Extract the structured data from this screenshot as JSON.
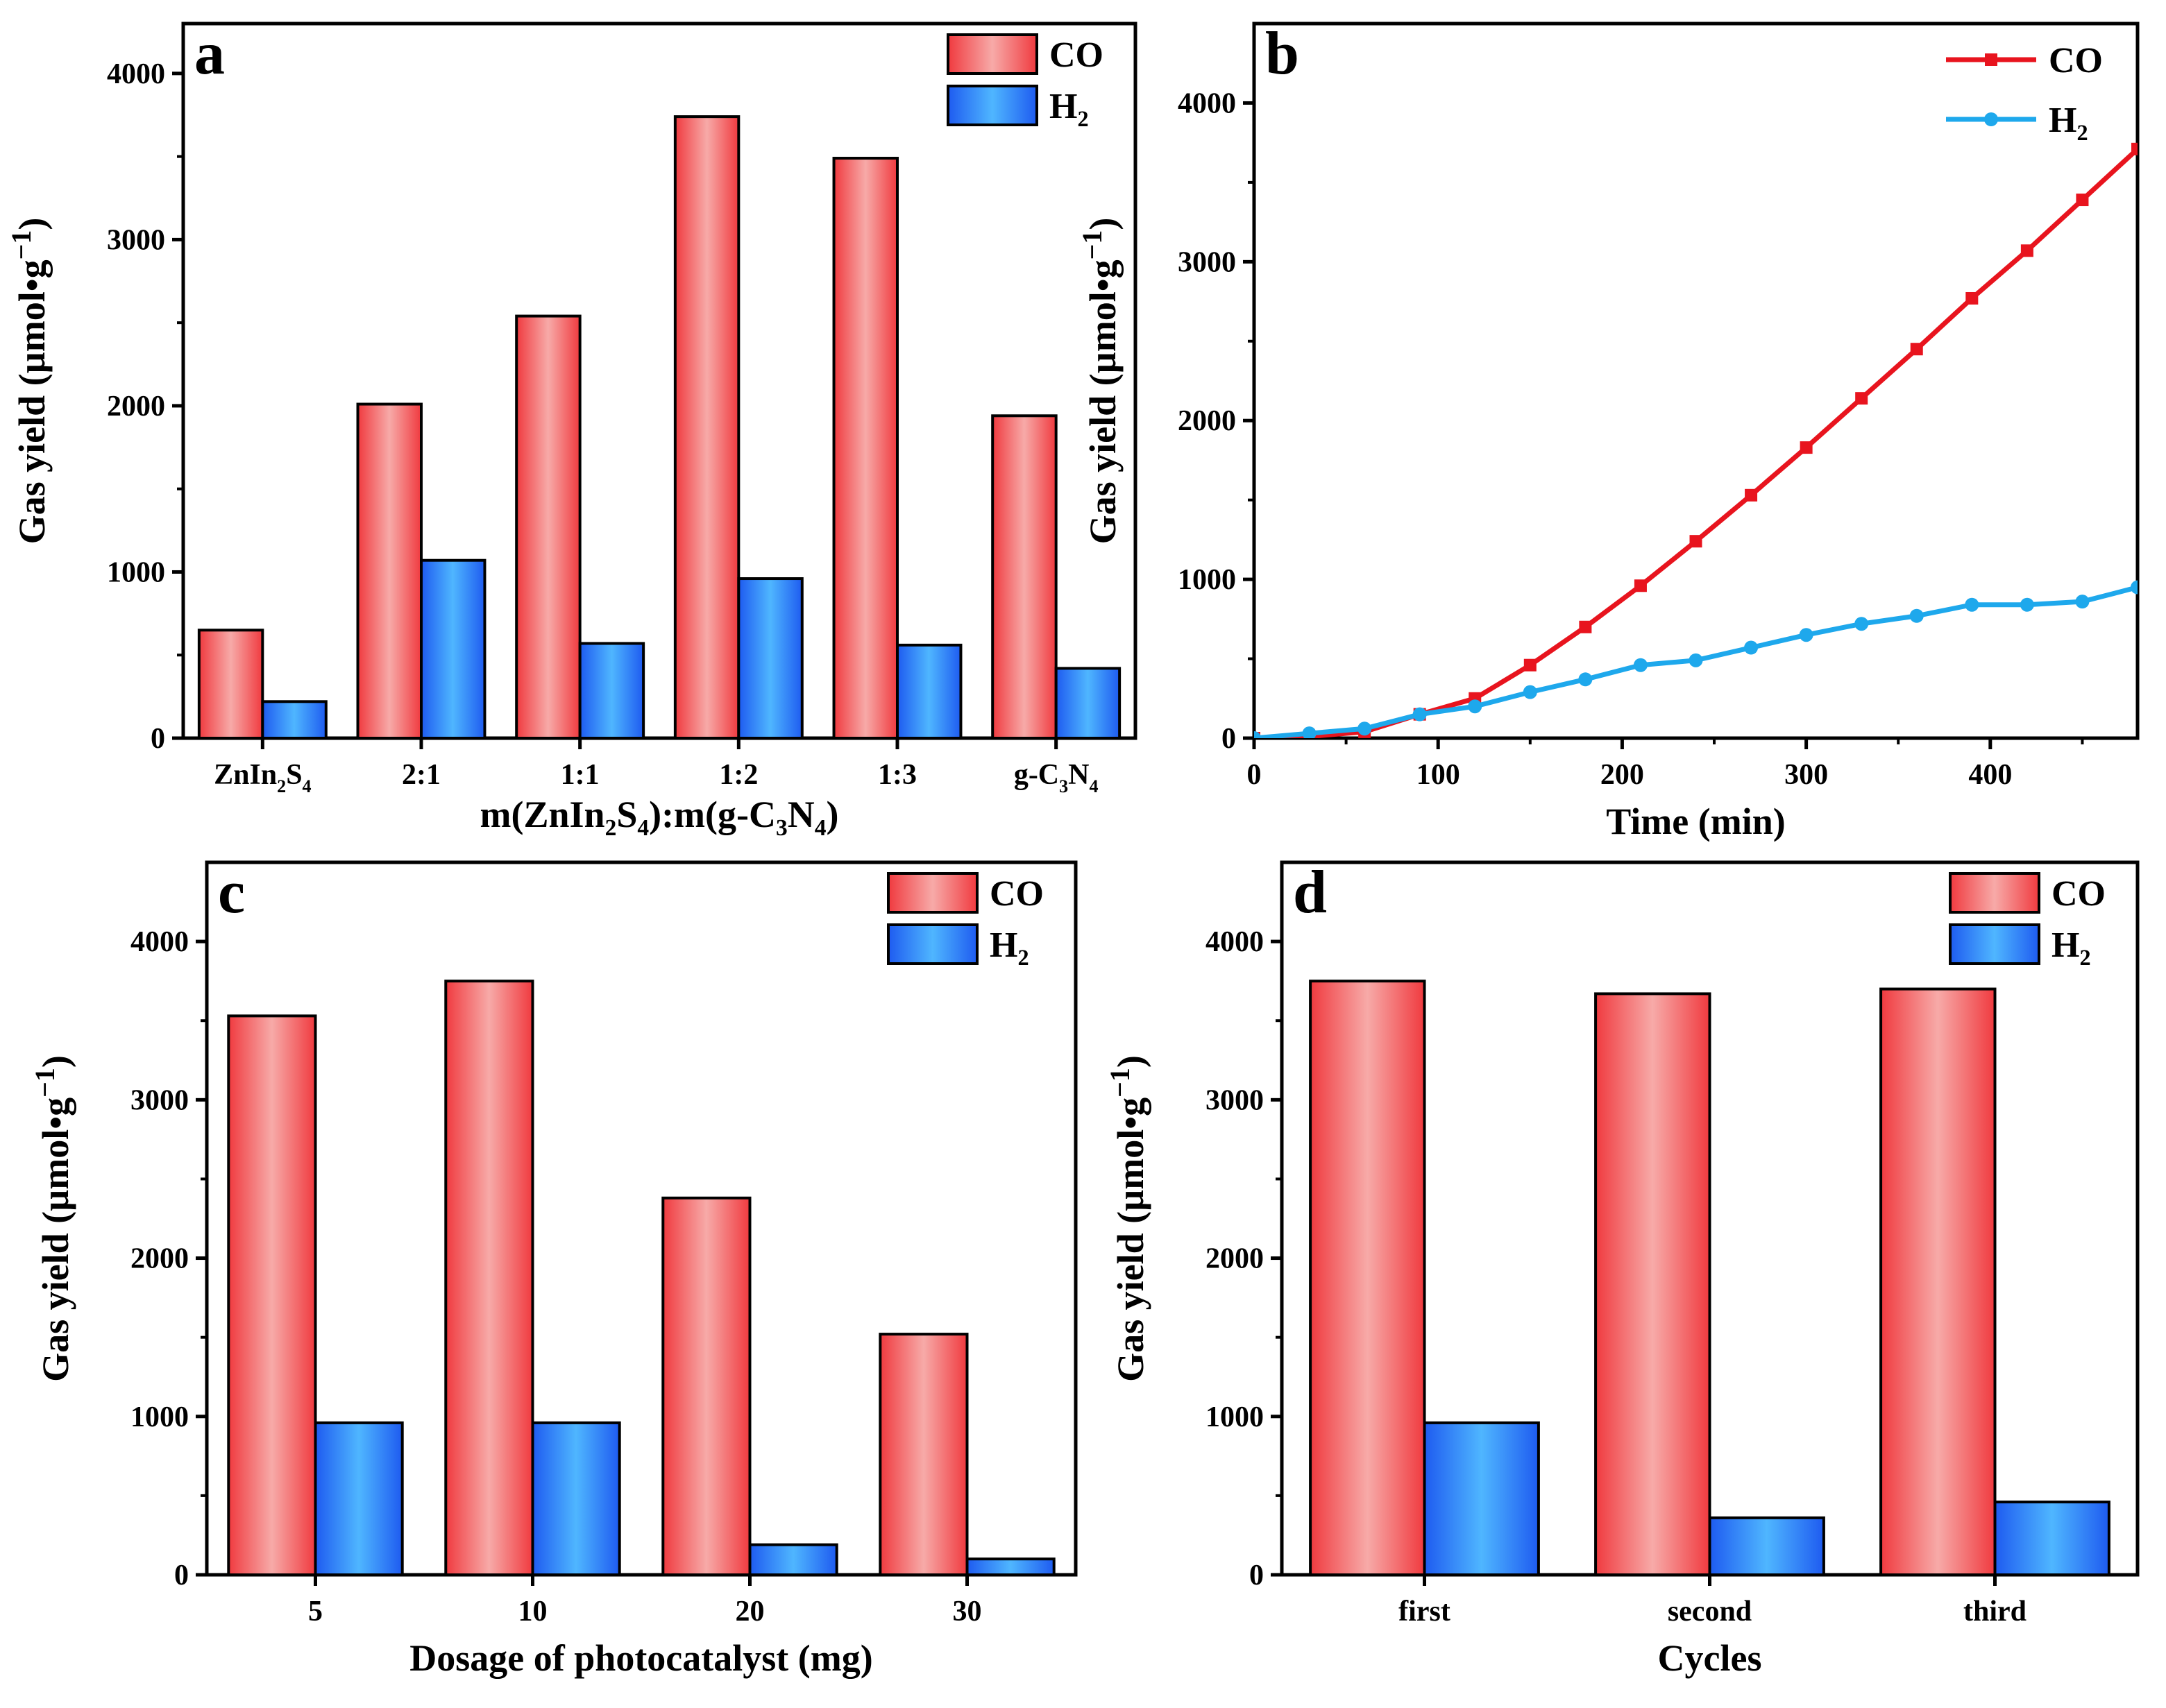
{
  "figure": {
    "background": "#ffffff"
  },
  "colors": {
    "co": "#f03a3f",
    "co_light": "#f7aaa8",
    "h2": "#1e5bf0",
    "h2_light": "#4fb6ff",
    "co_line": "#e8141e",
    "h2_line": "#1ea8ec",
    "axis": "#000000"
  },
  "chart_data": [
    {
      "id": "a",
      "type": "bar",
      "panel_label": "a",
      "title": "",
      "xlabel": "m(ZnIn2S4):m(g-C3N4)",
      "xlabel_parts": [
        {
          "t": "m(ZnIn"
        },
        {
          "t": "2",
          "sub": true
        },
        {
          "t": "S"
        },
        {
          "t": "4",
          "sub": true
        },
        {
          "t": "):m(g-C"
        },
        {
          "t": "3",
          "sub": true
        },
        {
          "t": "N"
        },
        {
          "t": "4",
          "sub": true
        },
        {
          "t": ")"
        }
      ],
      "ylabel": "Gas yield (µmol•g−1)",
      "categories": [
        "ZnIn2S4",
        "2:1",
        "1:1",
        "1:2",
        "1:3",
        "g-C3N4"
      ],
      "category_parts": [
        [
          {
            "t": "ZnIn"
          },
          {
            "t": "2",
            "sub": true
          },
          {
            "t": "S"
          },
          {
            "t": "4",
            "sub": true
          }
        ],
        [
          {
            "t": "2:1"
          }
        ],
        [
          {
            "t": "1:1"
          }
        ],
        [
          {
            "t": "1:2"
          }
        ],
        [
          {
            "t": "1:3"
          }
        ],
        [
          {
            "t": "g-C"
          },
          {
            "t": "3",
            "sub": true
          },
          {
            "t": "N"
          },
          {
            "t": "4",
            "sub": true
          }
        ]
      ],
      "series": [
        {
          "name": "CO",
          "values": [
            650,
            2010,
            2540,
            3740,
            3490,
            1940
          ]
        },
        {
          "name": "H2",
          "values": [
            220,
            1070,
            570,
            960,
            560,
            420
          ]
        }
      ],
      "ylim": [
        0,
        4300
      ],
      "yticks": [
        0,
        1000,
        2000,
        3000,
        4000
      ],
      "legend": [
        "CO",
        "H2"
      ],
      "legend_position": "top-right"
    },
    {
      "id": "b",
      "type": "line",
      "panel_label": "b",
      "title": "",
      "xlabel": "Time (min)",
      "ylabel": "Gas yield (µmol•g−1)",
      "series": [
        {
          "name": "CO",
          "marker": "square",
          "x": [
            0,
            30,
            60,
            90,
            120,
            150,
            180,
            210,
            240,
            270,
            300,
            330,
            360,
            390,
            420,
            450,
            480
          ],
          "y": [
            0,
            10,
            40,
            150,
            250,
            460,
            700,
            960,
            1240,
            1530,
            1830,
            2140,
            2450,
            2770,
            3070,
            3390,
            3710
          ]
        },
        {
          "name": "H2",
          "marker": "circle",
          "x": [
            0,
            30,
            60,
            90,
            120,
            150,
            180,
            210,
            240,
            270,
            300,
            330,
            360,
            390,
            420,
            450,
            480
          ],
          "y": [
            0,
            30,
            60,
            150,
            200,
            290,
            370,
            460,
            490,
            570,
            650,
            720,
            770,
            840,
            840,
            860,
            950
          ]
        }
      ],
      "xlim": [
        0,
        480
      ],
      "ylim": [
        0,
        4500
      ],
      "xticks": [
        0,
        100,
        200,
        300,
        400
      ],
      "yticks": [
        0,
        1000,
        2000,
        3000,
        4000
      ],
      "legend": [
        "CO",
        "H2"
      ],
      "legend_position": "top-right"
    },
    {
      "id": "c",
      "type": "bar",
      "panel_label": "c",
      "title": "",
      "xlabel": "Dosage of photocatalyst (mg)",
      "ylabel": "Gas yield (µmol•g−1)",
      "categories": [
        "5",
        "10",
        "20",
        "30"
      ],
      "series": [
        {
          "name": "CO",
          "values": [
            3530,
            3750,
            2380,
            1520
          ]
        },
        {
          "name": "H2",
          "values": [
            960,
            960,
            190,
            100
          ]
        }
      ],
      "ylim": [
        0,
        4500
      ],
      "yticks": [
        0,
        1000,
        2000,
        3000,
        4000
      ],
      "legend": [
        "CO",
        "H2"
      ],
      "legend_position": "top-right"
    },
    {
      "id": "d",
      "type": "bar",
      "panel_label": "d",
      "title": "",
      "xlabel": "Cycles",
      "ylabel": "Gas yield (µmol•g−1)",
      "categories": [
        "first",
        "second",
        "third"
      ],
      "series": [
        {
          "name": "CO",
          "values": [
            3750,
            3670,
            3700
          ]
        },
        {
          "name": "H2",
          "values": [
            960,
            360,
            460
          ]
        }
      ],
      "ylim": [
        0,
        4500
      ],
      "yticks": [
        0,
        1000,
        2000,
        3000,
        4000
      ],
      "legend": [
        "CO",
        "H2"
      ],
      "legend_position": "top-right"
    }
  ]
}
